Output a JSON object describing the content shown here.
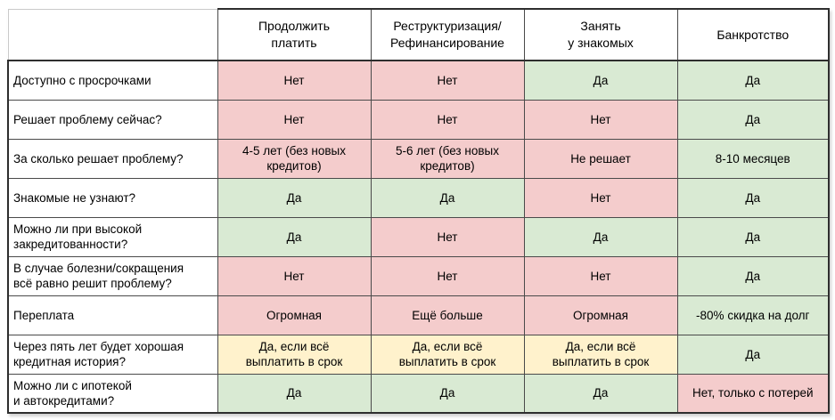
{
  "chart_data": {
    "type": "table",
    "columns": [
      "",
      "Продолжить\nплатить",
      "Реструктуризация/\nРефинансирование",
      "Занять\nу знакомых",
      "Банкротство"
    ],
    "colors": {
      "red": "#f4cccc",
      "green": "#d9ead3",
      "yellow": "#fff2cc"
    },
    "rows": [
      {
        "label": "Доступно с просрочками",
        "cells": [
          {
            "text": "Нет",
            "status": "red"
          },
          {
            "text": "Нет",
            "status": "red"
          },
          {
            "text": "Да",
            "status": "green"
          },
          {
            "text": "Да",
            "status": "green"
          }
        ]
      },
      {
        "label": "Решает проблему сейчас?",
        "cells": [
          {
            "text": "Нет",
            "status": "red"
          },
          {
            "text": "Нет",
            "status": "red"
          },
          {
            "text": "Нет",
            "status": "red"
          },
          {
            "text": "Да",
            "status": "green"
          }
        ]
      },
      {
        "label": "За сколько решает проблему?",
        "cells": [
          {
            "text": "4-5 лет (без новых\nкредитов)",
            "status": "red"
          },
          {
            "text": "5-6 лет (без новых\nкредитов)",
            "status": "red"
          },
          {
            "text": "Не решает",
            "status": "red"
          },
          {
            "text": "8-10 месяцев",
            "status": "green"
          }
        ]
      },
      {
        "label": "Знакомые не узнают?",
        "cells": [
          {
            "text": "Да",
            "status": "green"
          },
          {
            "text": "Да",
            "status": "green"
          },
          {
            "text": "Нет",
            "status": "red"
          },
          {
            "text": "Да",
            "status": "green"
          }
        ]
      },
      {
        "label": "Можно ли при высокой\nзакредитованности?",
        "cells": [
          {
            "text": "Да",
            "status": "green"
          },
          {
            "text": "Нет",
            "status": "red"
          },
          {
            "text": "Да",
            "status": "green"
          },
          {
            "text": "Да",
            "status": "green"
          }
        ]
      },
      {
        "label": "В случае болезни/сокращения\nвсё равно решит проблему?",
        "cells": [
          {
            "text": "Нет",
            "status": "red"
          },
          {
            "text": "Нет",
            "status": "red"
          },
          {
            "text": "Нет",
            "status": "red"
          },
          {
            "text": "Да",
            "status": "green"
          }
        ]
      },
      {
        "label": "Переплата",
        "cells": [
          {
            "text": "Огромная",
            "status": "red"
          },
          {
            "text": "Ещё больше",
            "status": "red"
          },
          {
            "text": "Огромная",
            "status": "red"
          },
          {
            "text": "-80% скидка на долг",
            "status": "green"
          }
        ]
      },
      {
        "label": "Через пять лет будет хорошая\nкредитная история?",
        "cells": [
          {
            "text": "Да, если всё\nвыплатить в срок",
            "status": "yellow"
          },
          {
            "text": "Да, если всё\nвыплатить в срок",
            "status": "yellow"
          },
          {
            "text": "Да, если всё\nвыплатить в срок",
            "status": "yellow"
          },
          {
            "text": "Да",
            "status": "green"
          }
        ]
      },
      {
        "label": "Можно ли с ипотекой\nи автокредитами?",
        "cells": [
          {
            "text": "Да",
            "status": "green"
          },
          {
            "text": "Да",
            "status": "green"
          },
          {
            "text": "Да",
            "status": "green"
          },
          {
            "text": "Нет, только с потерей",
            "status": "red"
          }
        ]
      }
    ]
  }
}
